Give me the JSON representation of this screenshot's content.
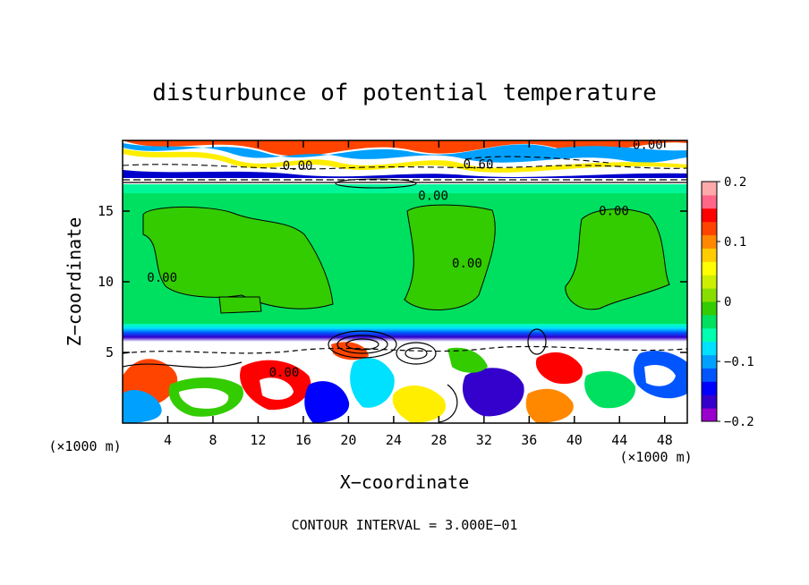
{
  "chart_data": {
    "type": "heatmap",
    "title": "disturbunce of potential temperature",
    "xlabel": "X−coordinate",
    "ylabel": "Z−coordinate",
    "x_unit_left": "(×1000 m)",
    "x_unit_right": "(×1000 m)",
    "xlim": [
      0,
      50
    ],
    "ylim": [
      0,
      20
    ],
    "xticks": [
      4,
      8,
      12,
      16,
      20,
      24,
      28,
      32,
      36,
      40,
      44,
      48
    ],
    "yticks": [
      5,
      10,
      15
    ],
    "colorbar": {
      "range": [
        -0.2,
        0.2
      ],
      "ticks": [
        {
          "value": 0.2,
          "label": "0.2"
        },
        {
          "value": 0.1,
          "label": "0.1"
        },
        {
          "value": 0,
          "label": "0"
        },
        {
          "value": -0.1,
          "label": "−0.1"
        },
        {
          "value": -0.2,
          "label": "−0.2"
        }
      ],
      "colors": [
        "#9900cc",
        "#3300cc",
        "#0000ff",
        "#0055ff",
        "#00a0ff",
        "#00e0ff",
        "#00ffb0",
        "#00e060",
        "#33cc00",
        "#88dd00",
        "#ccee00",
        "#ffff00",
        "#ffcc00",
        "#ff8800",
        "#ff4400",
        "#ff0000",
        "#ff6688",
        "#ffaaaa"
      ]
    },
    "contour_labels": [
      {
        "text": "0.00",
        "x": 15.5,
        "z": 17.9
      },
      {
        "text": "0.60",
        "x": 31.5,
        "z": 18.0
      },
      {
        "text": "0.00",
        "x": 46.5,
        "z": 19.4
      },
      {
        "text": "0.00",
        "x": 27.5,
        "z": 15.8
      },
      {
        "text": "0.00",
        "x": 43.5,
        "z": 14.7
      },
      {
        "text": "0.00",
        "x": 30.5,
        "z": 11.0
      },
      {
        "text": "0.00",
        "x": 3.5,
        "z": 10.0
      },
      {
        "text": "0.00",
        "x": 14.3,
        "z": 3.3
      }
    ],
    "footer": "CONTOUR INTERVAL = 3.000E−01"
  }
}
